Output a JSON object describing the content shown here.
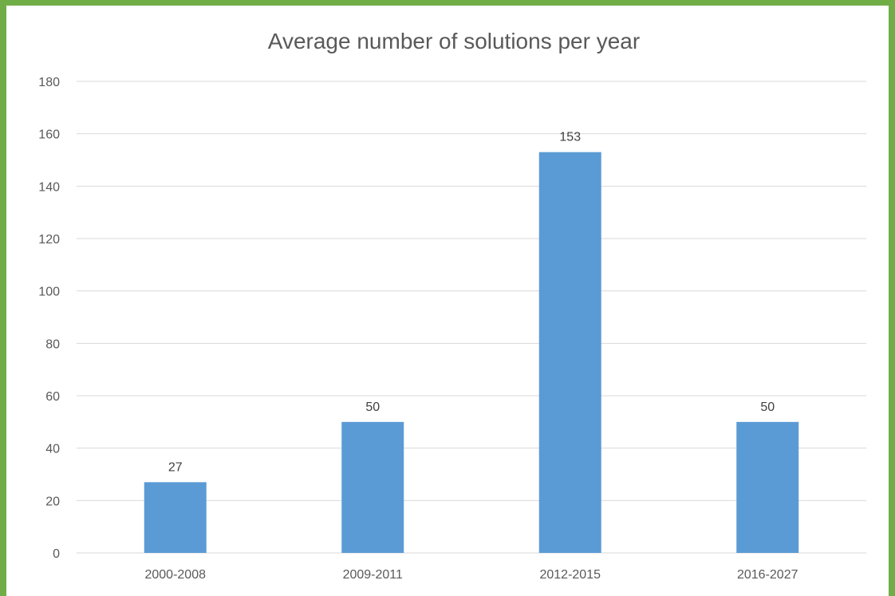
{
  "chart_data": {
    "type": "bar",
    "title": "Average number of solutions per year",
    "categories": [
      "2000-2008",
      "2009-2011",
      "2012-2015",
      "2016-2027"
    ],
    "values": [
      27,
      50,
      153,
      50
    ],
    "data_labels": [
      "27",
      "50",
      "153",
      "50"
    ],
    "xlabel": "",
    "ylabel": "",
    "ylim": [
      0,
      180
    ],
    "yticks": [
      0,
      20,
      40,
      60,
      80,
      100,
      120,
      140,
      160,
      180
    ],
    "ytick_labels": [
      "0",
      "20",
      "40",
      "60",
      "80",
      "100",
      "120",
      "140",
      "160",
      "180"
    ],
    "grid": true,
    "legend": "none",
    "colors": {
      "bar": "#5b9bd5",
      "border": "#70ad47",
      "background": "#ffffff",
      "gridline": "#d9d9d9",
      "text": "#595959"
    }
  }
}
